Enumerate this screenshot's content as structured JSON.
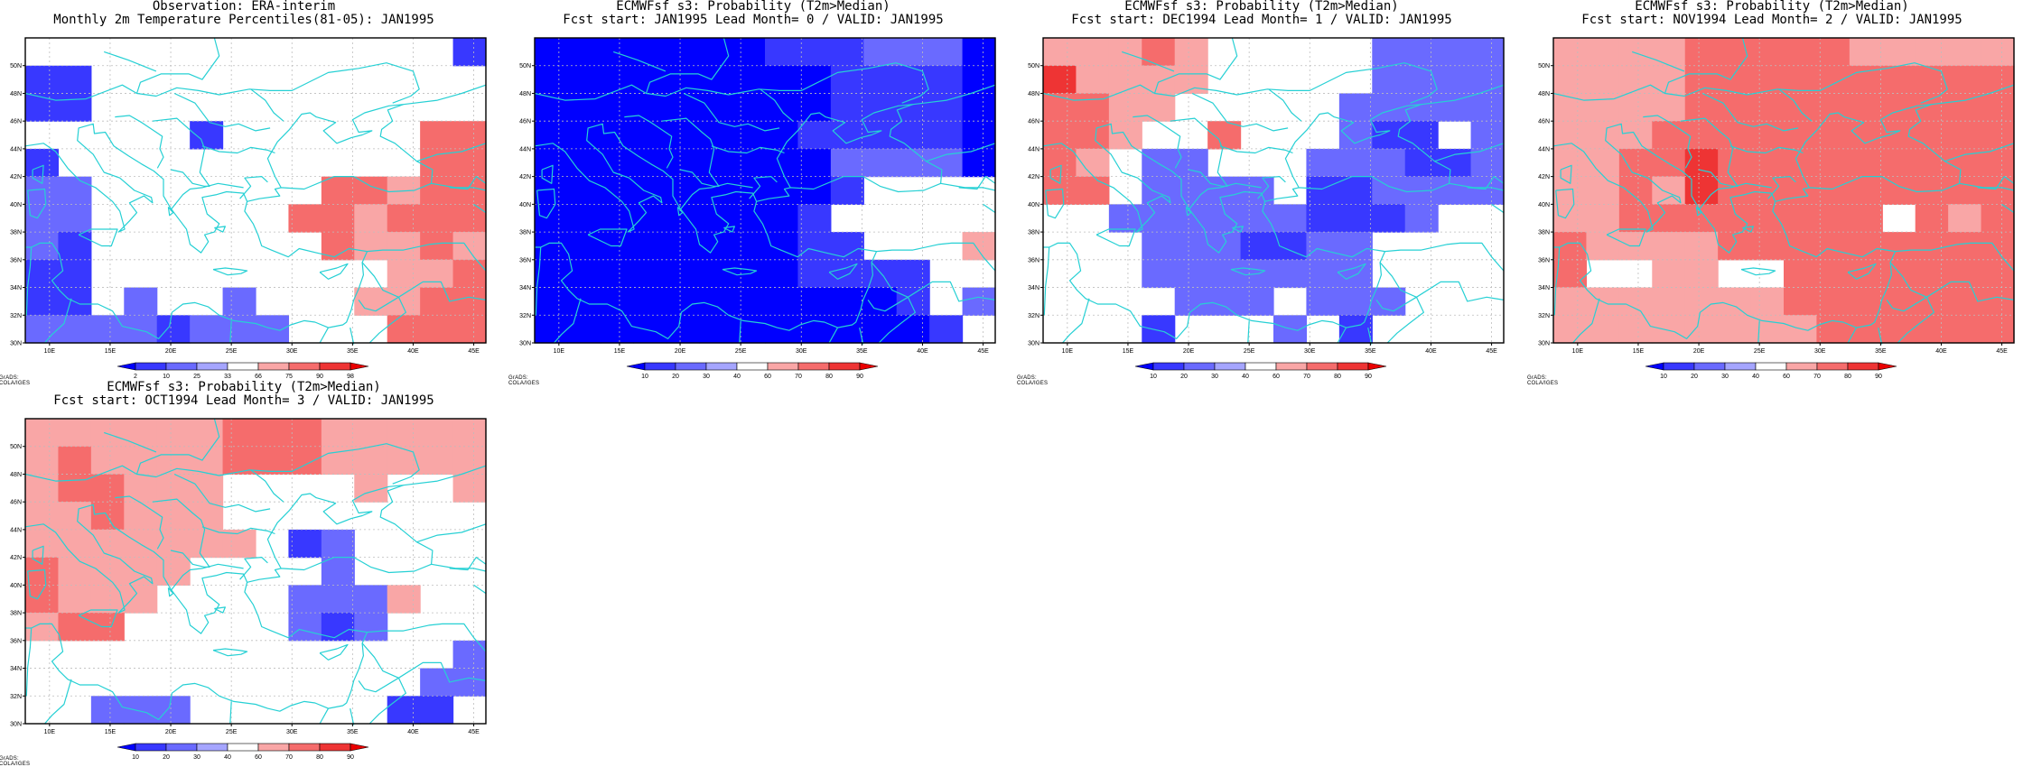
{
  "colors": {
    "coast": "#26d0d4",
    "grid": "#bdbdbd",
    "blue_scale": [
      "#0000ff",
      "#3838ff",
      "#6a6aff",
      "#a5a5ff"
    ],
    "red_scale": [
      "#f9a6a6",
      "#f56c6c",
      "#ee3434",
      "#e90000"
    ]
  },
  "lon_labels": [
    "10E",
    "15E",
    "20E",
    "25E",
    "30E",
    "35E",
    "40E",
    "45E"
  ],
  "lat_labels": [
    "50N",
    "48N",
    "46N",
    "44N",
    "42N",
    "40N",
    "38N",
    "36N",
    "34N",
    "32N",
    "30N"
  ],
  "credit": "GrADS: COLA/IGES",
  "panels": [
    {
      "title1": "Observation: ERA-interim",
      "title2": "Monthly 2m Temperature Percentiles(81-05): JAN1995",
      "cbar_labels": [
        "2",
        "10",
        "25",
        "33",
        "66",
        "75",
        "90",
        "98"
      ],
      "grid": [
        "0000000000000B",
        "BB000000000000",
        "BB000000000000",
        "00000B000000RR",
        "B00000000000RR",
        "CC0000000RRQRR",
        "CC000000RRQRRR",
        "CB0000000RQQRQ",
        "BB000000000QQR",
        "BB0C00C000QQRR",
        "CCCCBCCC000RRR"
      ]
    },
    {
      "title1": "ECMWFsf s3: Probability (T2m>Median)",
      "title2": "Fcst start: JAN1995   Lead Month= 0 / VALID: JAN1995",
      "cbar_labels": [
        "10",
        "20",
        "30",
        "40",
        "60",
        "70",
        "80",
        "90"
      ],
      "grid": [
        "AAAAAAABBBCCCA",
        "AAAAAAAAABBBBA",
        "AAAAAAAAABBBBA",
        "AAAAAAAABBBBBA",
        "AAAAAAAAACCCCA",
        "AAAAAAAAAB0000",
        "AAAAAAAAB00000",
        "AAAAAAAABB000Q",
        "AAAAAAAABBBB00",
        "AAAAAAAAAAAB0C",
        "AAAAAAAAAAAAB0"
      ]
    },
    {
      "title1": "ECMWFsf s3: Probability (T2m>Median)",
      "title2": "Fcst start: DEC1994   Lead Month= 1 / VALID: JAN1995",
      "cbar_labels": [
        "10",
        "20",
        "30",
        "40",
        "60",
        "70",
        "80",
        "90"
      ],
      "grid": [
        "QQQRQ00000CCCC",
        "SQQQQ00000CCCC",
        "RRQQ00000CCCCC",
        "RRQ00R000CBB0C",
        "RQ0CC000CCCBBC",
        "RR0CCCC0BBCCCC",
        "00CCCCCCBBBC00",
        "000CCCBBCC0000",
        "000CCCCCCC0000",
        "0000CCC0CCC000",
        "000B000C0B0000"
      ]
    },
    {
      "title1": "ECMWFsf s3: Probability (T2m>Median)",
      "title2": "Fcst start: NOV1994   Lead Month= 2 / VALID: JAN1995",
      "cbar_labels": [
        "10",
        "20",
        "30",
        "40",
        "60",
        "70",
        "80",
        "90"
      ],
      "grid": [
        "QQQQRRRRRQQQQQ",
        "QQQQRRRRRRRRRR",
        "QQQQRRRRRRRRRR",
        "QQQRRRRRRRRRRR",
        "QQRRSRRRRRRRRR",
        "QQRQSRRRRRRRRR",
        "QQRRRRRRRR0RQR",
        "RQQQQRRRRRRRRR",
        "R00QQ00RRRRRRR",
        "QQQQQQQRRRRRRR",
        "QQQQQQQQRRRRRR"
      ]
    },
    {
      "title1": "ECMWFsf s3: Probability (T2m>Median)",
      "title2": "Fcst start: OCT1994   Lead Month= 3 / VALID: JAN1995",
      "cbar_labels": [
        "10",
        "20",
        "30",
        "40",
        "60",
        "70",
        "80",
        "90"
      ],
      "grid": [
        "QQQQQQRRRQQQQQ",
        "QRQQQQRRRQQQQQ",
        "QRRQQQ0000Q00Q",
        "QQRQQQ00000000",
        "QQQQQQQ0BC0000",
        "RQQQQ0000C0000",
        "RQQQ0000CCCQ00",
        "QRR00000CBC000",
        "0000000000000C",
        "000000000000CC",
        "00CCC000000BB0"
      ]
    }
  ]
}
